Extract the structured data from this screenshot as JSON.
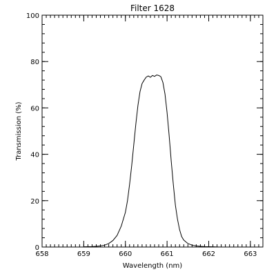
{
  "chart_data": {
    "type": "line",
    "title": "Filter 1628",
    "xlabel": "Wavelength (nm)",
    "ylabel": "Transmission (%)",
    "xlim": [
      658,
      663.3
    ],
    "ylim": [
      0,
      100
    ],
    "xticks": [
      658,
      659,
      660,
      661,
      662,
      663
    ],
    "yticks": [
      0,
      20,
      40,
      60,
      80,
      100
    ],
    "x_minor_step": 0.1,
    "y_minor_step": 4,
    "grid": false,
    "colors": {
      "line": "#000000",
      "axes": "#000000",
      "background": "#ffffff"
    },
    "series": [
      {
        "x": [
          659.0,
          659.2,
          659.3,
          659.4,
          659.5,
          659.6,
          659.7,
          659.8,
          659.9,
          660.0,
          660.05,
          660.1,
          660.15,
          660.2,
          660.25,
          660.3,
          660.35,
          660.4,
          660.45,
          660.5,
          660.55,
          660.6,
          660.65,
          660.7,
          660.75,
          660.8,
          660.85,
          660.9,
          660.95,
          661.0,
          661.05,
          661.1,
          661.15,
          661.2,
          661.25,
          661.3,
          661.35,
          661.4,
          661.5,
          661.6,
          661.7,
          661.8,
          661.9,
          662.0,
          662.1,
          662.2,
          662.3
        ],
        "values": [
          0.1,
          0.2,
          0.3,
          0.5,
          0.8,
          1.5,
          2.8,
          5,
          9,
          15,
          20,
          27,
          35,
          44,
          53,
          61,
          67,
          70.5,
          72,
          73.3,
          73.8,
          73.2,
          74,
          73.6,
          74.2,
          74.0,
          73.5,
          71,
          66,
          58,
          48,
          37,
          27,
          18,
          12,
          7.5,
          4.5,
          3,
          1.5,
          0.8,
          0.5,
          0.3,
          0.2,
          0.15,
          0.1,
          0.05,
          0
        ]
      }
    ]
  }
}
